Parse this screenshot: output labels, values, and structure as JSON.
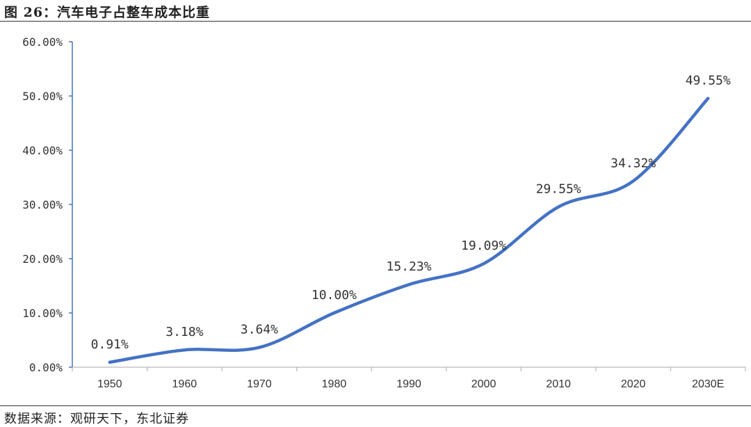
{
  "header": {
    "title": "图 26：汽车电子占整车成本比重"
  },
  "footer": {
    "source": "数据来源：观研天下，东北证券"
  },
  "chart_data": {
    "type": "line",
    "title": "图 26：汽车电子占整车成本比重",
    "categories": [
      "1950",
      "1960",
      "1970",
      "1980",
      "1990",
      "2000",
      "2010",
      "2020",
      "2030E"
    ],
    "series": [
      {
        "values": [
          0.91,
          3.18,
          3.64,
          10.0,
          15.23,
          19.09,
          29.55,
          34.32,
          49.55
        ]
      }
    ],
    "data_labels": [
      "0.91%",
      "3.18%",
      "3.64%",
      "10.00%",
      "15.23%",
      "19.09%",
      "29.55%",
      "34.32%",
      "49.55%"
    ],
    "y_tick_labels": [
      "0.00%",
      "10.00%",
      "20.00%",
      "30.00%",
      "40.00%",
      "50.00%",
      "60.00%"
    ],
    "y_ticks": [
      0,
      10,
      20,
      30,
      40,
      50,
      60
    ],
    "ylim": [
      0,
      60
    ],
    "y_unit": "%",
    "smooth": true,
    "grid": false,
    "line_color": "#4472C4",
    "axis_color": "#4472C4",
    "xlabel": "",
    "ylabel": ""
  }
}
